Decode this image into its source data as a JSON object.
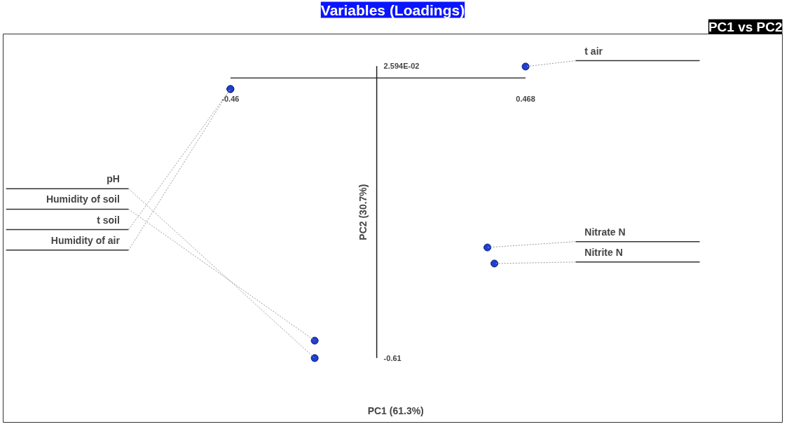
{
  "chart_data": {
    "type": "scatter",
    "title": "Variables (Loadings)",
    "subtitle": "PC1 vs PC2",
    "xlabel": "PC1 (61.3%)",
    "ylabel": "PC2 (30.7%)",
    "xlim": [
      -0.46,
      0.468
    ],
    "ylim": [
      -0.61,
      0.02594
    ],
    "xticks": [
      -0.46,
      0.468
    ],
    "yticks": [
      -0.61,
      {
        "value": 0.02594,
        "label": "2.594E-02"
      }
    ],
    "grid": false,
    "marker": "circle",
    "series": [
      {
        "color": "#1f3fd0",
        "x": [
          0.468,
          -0.195,
          -0.195,
          -0.46,
          -0.46,
          0.37,
          0.348
        ],
        "values": [
          0.025,
          -0.61,
          -0.572,
          -0.024,
          -0.024,
          -0.404,
          -0.369
        ]
      }
    ],
    "annotations": [
      {
        "text": "t air",
        "x": 0.468,
        "y": 0.025
      },
      {
        "text": "pH",
        "x": -0.195,
        "y": -0.61
      },
      {
        "text": "Humidity of soil",
        "x": -0.195,
        "y": -0.572
      },
      {
        "text": "t soil",
        "x": -0.46,
        "y": -0.024
      },
      {
        "text": "Humidity of air",
        "x": -0.46,
        "y": -0.024
      },
      {
        "text": "Nitrite  N",
        "x": 0.37,
        "y": -0.404
      },
      {
        "text": "Nitrate N",
        "x": 0.348,
        "y": -0.369
      }
    ]
  }
}
